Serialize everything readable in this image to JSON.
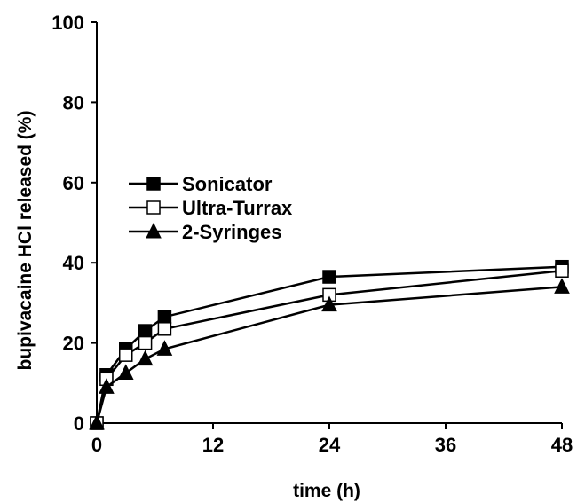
{
  "chart_data": {
    "type": "line",
    "title": "",
    "xlabel": "time (h)",
    "ylabel": "bupivacaine HCl released (%)",
    "xlim": [
      0,
      48
    ],
    "ylim": [
      0,
      100
    ],
    "xticks": [
      0,
      12,
      24,
      36,
      48
    ],
    "yticks": [
      0,
      20,
      40,
      60,
      80,
      100
    ],
    "grid": false,
    "legend_position": "upper-left",
    "series": [
      {
        "name": "Sonicator",
        "marker": "square-filled",
        "color": "#000000",
        "x": [
          0,
          1,
          3,
          5,
          7,
          24,
          48
        ],
        "y": [
          0,
          12,
          18.5,
          23,
          26.5,
          36.5,
          39
        ]
      },
      {
        "name": "Ultra-Turrax",
        "marker": "square-open",
        "color": "#000000",
        "x": [
          0,
          1,
          3,
          5,
          7,
          24,
          48
        ],
        "y": [
          0,
          11,
          17,
          20,
          23.5,
          32,
          38
        ]
      },
      {
        "name": "2-Syringes",
        "marker": "triangle-filled",
        "color": "#000000",
        "x": [
          0,
          1,
          3,
          5,
          7,
          24,
          48
        ],
        "y": [
          0,
          9,
          12.5,
          16,
          18.5,
          29.5,
          34
        ]
      }
    ]
  }
}
